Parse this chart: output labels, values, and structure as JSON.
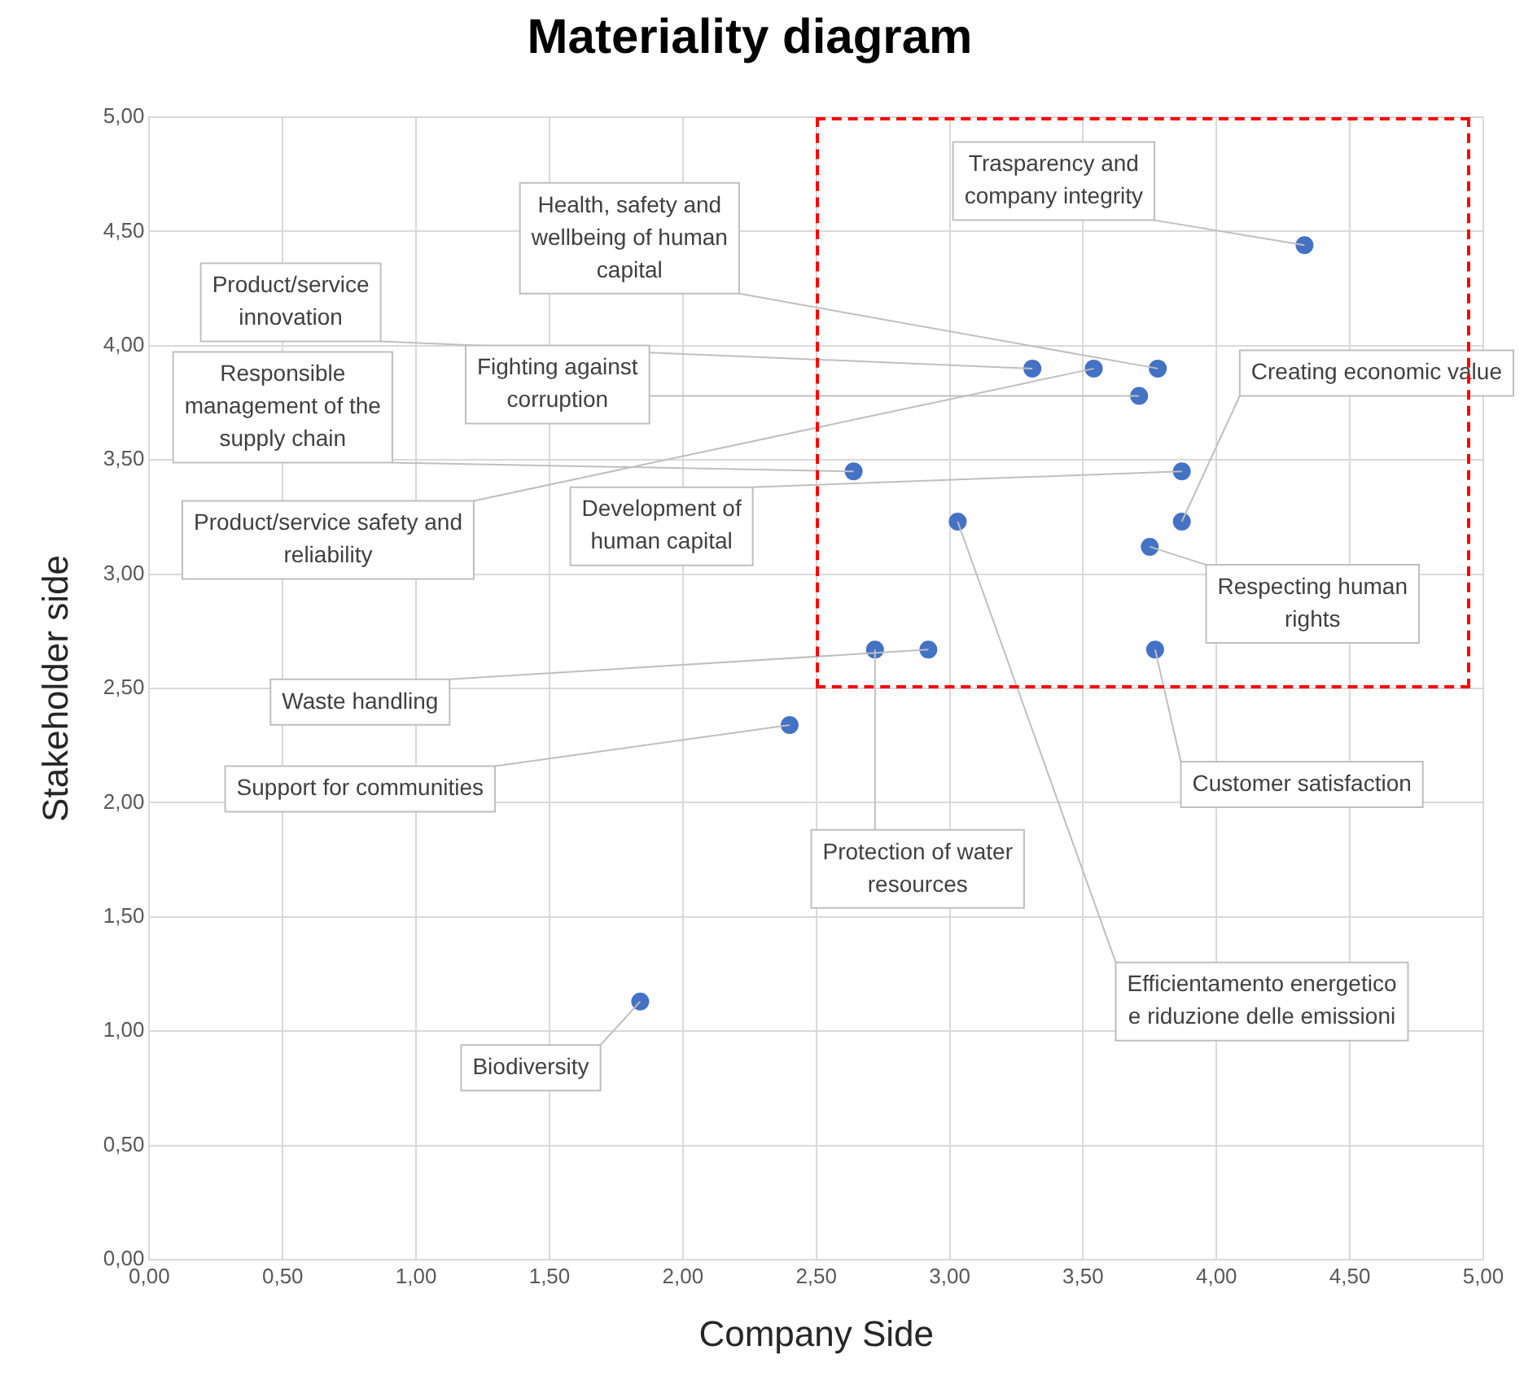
{
  "chart_data": {
    "type": "scatter",
    "title": "Materiality diagram",
    "xlabel": "Company Side",
    "ylabel": "Stakeholder side",
    "x": [
      4.33,
      3.78,
      3.31,
      3.71,
      2.64,
      3.54,
      3.87,
      3.87,
      3.75,
      2.92,
      2.4,
      2.72,
      3.77,
      3.03,
      1.84
    ],
    "series": [
      {
        "color": "#4472c4",
        "values": [
          4.44,
          3.9,
          3.9,
          3.78,
          3.45,
          3.9,
          3.45,
          3.23,
          3.12,
          2.67,
          2.34,
          2.67,
          2.67,
          3.23,
          1.13
        ]
      }
    ],
    "marker": "circle",
    "grid": true,
    "xlim": [
      0,
      5
    ],
    "ylim": [
      0,
      5
    ],
    "xticks": [
      {
        "value": 0,
        "label": "0,00"
      },
      {
        "value": 0.5,
        "label": "0,50"
      },
      {
        "value": 1,
        "label": "1,00"
      },
      {
        "value": 1.5,
        "label": "1,50"
      },
      {
        "value": 2,
        "label": "2,00"
      },
      {
        "value": 2.5,
        "label": "2,50"
      },
      {
        "value": 3,
        "label": "3,00"
      },
      {
        "value": 3.5,
        "label": "3,50"
      },
      {
        "value": 4,
        "label": "4,00"
      },
      {
        "value": 4.5,
        "label": "4,50"
      },
      {
        "value": 5,
        "label": "5,00"
      }
    ],
    "yticks": [
      {
        "value": 0,
        "label": "0,00"
      },
      {
        "value": 0.5,
        "label": "0,50"
      },
      {
        "value": 1,
        "label": "1,00"
      },
      {
        "value": 1.5,
        "label": "1,50"
      },
      {
        "value": 2,
        "label": "2,00"
      },
      {
        "value": 2.5,
        "label": "2,50"
      },
      {
        "value": 3,
        "label": "3,00"
      },
      {
        "value": 3.5,
        "label": "3,50"
      },
      {
        "value": 4,
        "label": "4,00"
      },
      {
        "value": 4.5,
        "label": "4,50"
      },
      {
        "value": 5,
        "label": "5,00"
      }
    ],
    "annotations": [
      {
        "text": "Trasparency and company integrity",
        "x": 4.33,
        "y": 4.44
      },
      {
        "text": "Health, safety and wellbeing of human capital",
        "x": 3.78,
        "y": 3.9
      },
      {
        "text": "Product/service innovation",
        "x": 3.31,
        "y": 3.9
      },
      {
        "text": "Fighting against corruption",
        "x": 3.71,
        "y": 3.78
      },
      {
        "text": "Responsible management of the supply chain",
        "x": 2.64,
        "y": 3.45
      },
      {
        "text": "Product/service safety and reliability",
        "x": 3.54,
        "y": 3.9
      },
      {
        "text": "Development of human capital",
        "x": 3.87,
        "y": 3.45
      },
      {
        "text": "Creating economic value",
        "x": 3.87,
        "y": 3.23
      },
      {
        "text": "Respecting human rights",
        "x": 3.75,
        "y": 3.12
      },
      {
        "text": "Waste handling",
        "x": 2.92,
        "y": 2.67
      },
      {
        "text": "Support for communities",
        "x": 2.4,
        "y": 2.34
      },
      {
        "text": "Protection of water resources",
        "x": 2.72,
        "y": 2.67
      },
      {
        "text": "Customer satisfaction",
        "x": 3.77,
        "y": 2.67
      },
      {
        "text": "Efficientamento energetico e riduzione delle emissioni",
        "x": 3.03,
        "y": 3.23
      },
      {
        "text": "Biodiversity",
        "x": 1.84,
        "y": 1.13
      }
    ]
  }
}
